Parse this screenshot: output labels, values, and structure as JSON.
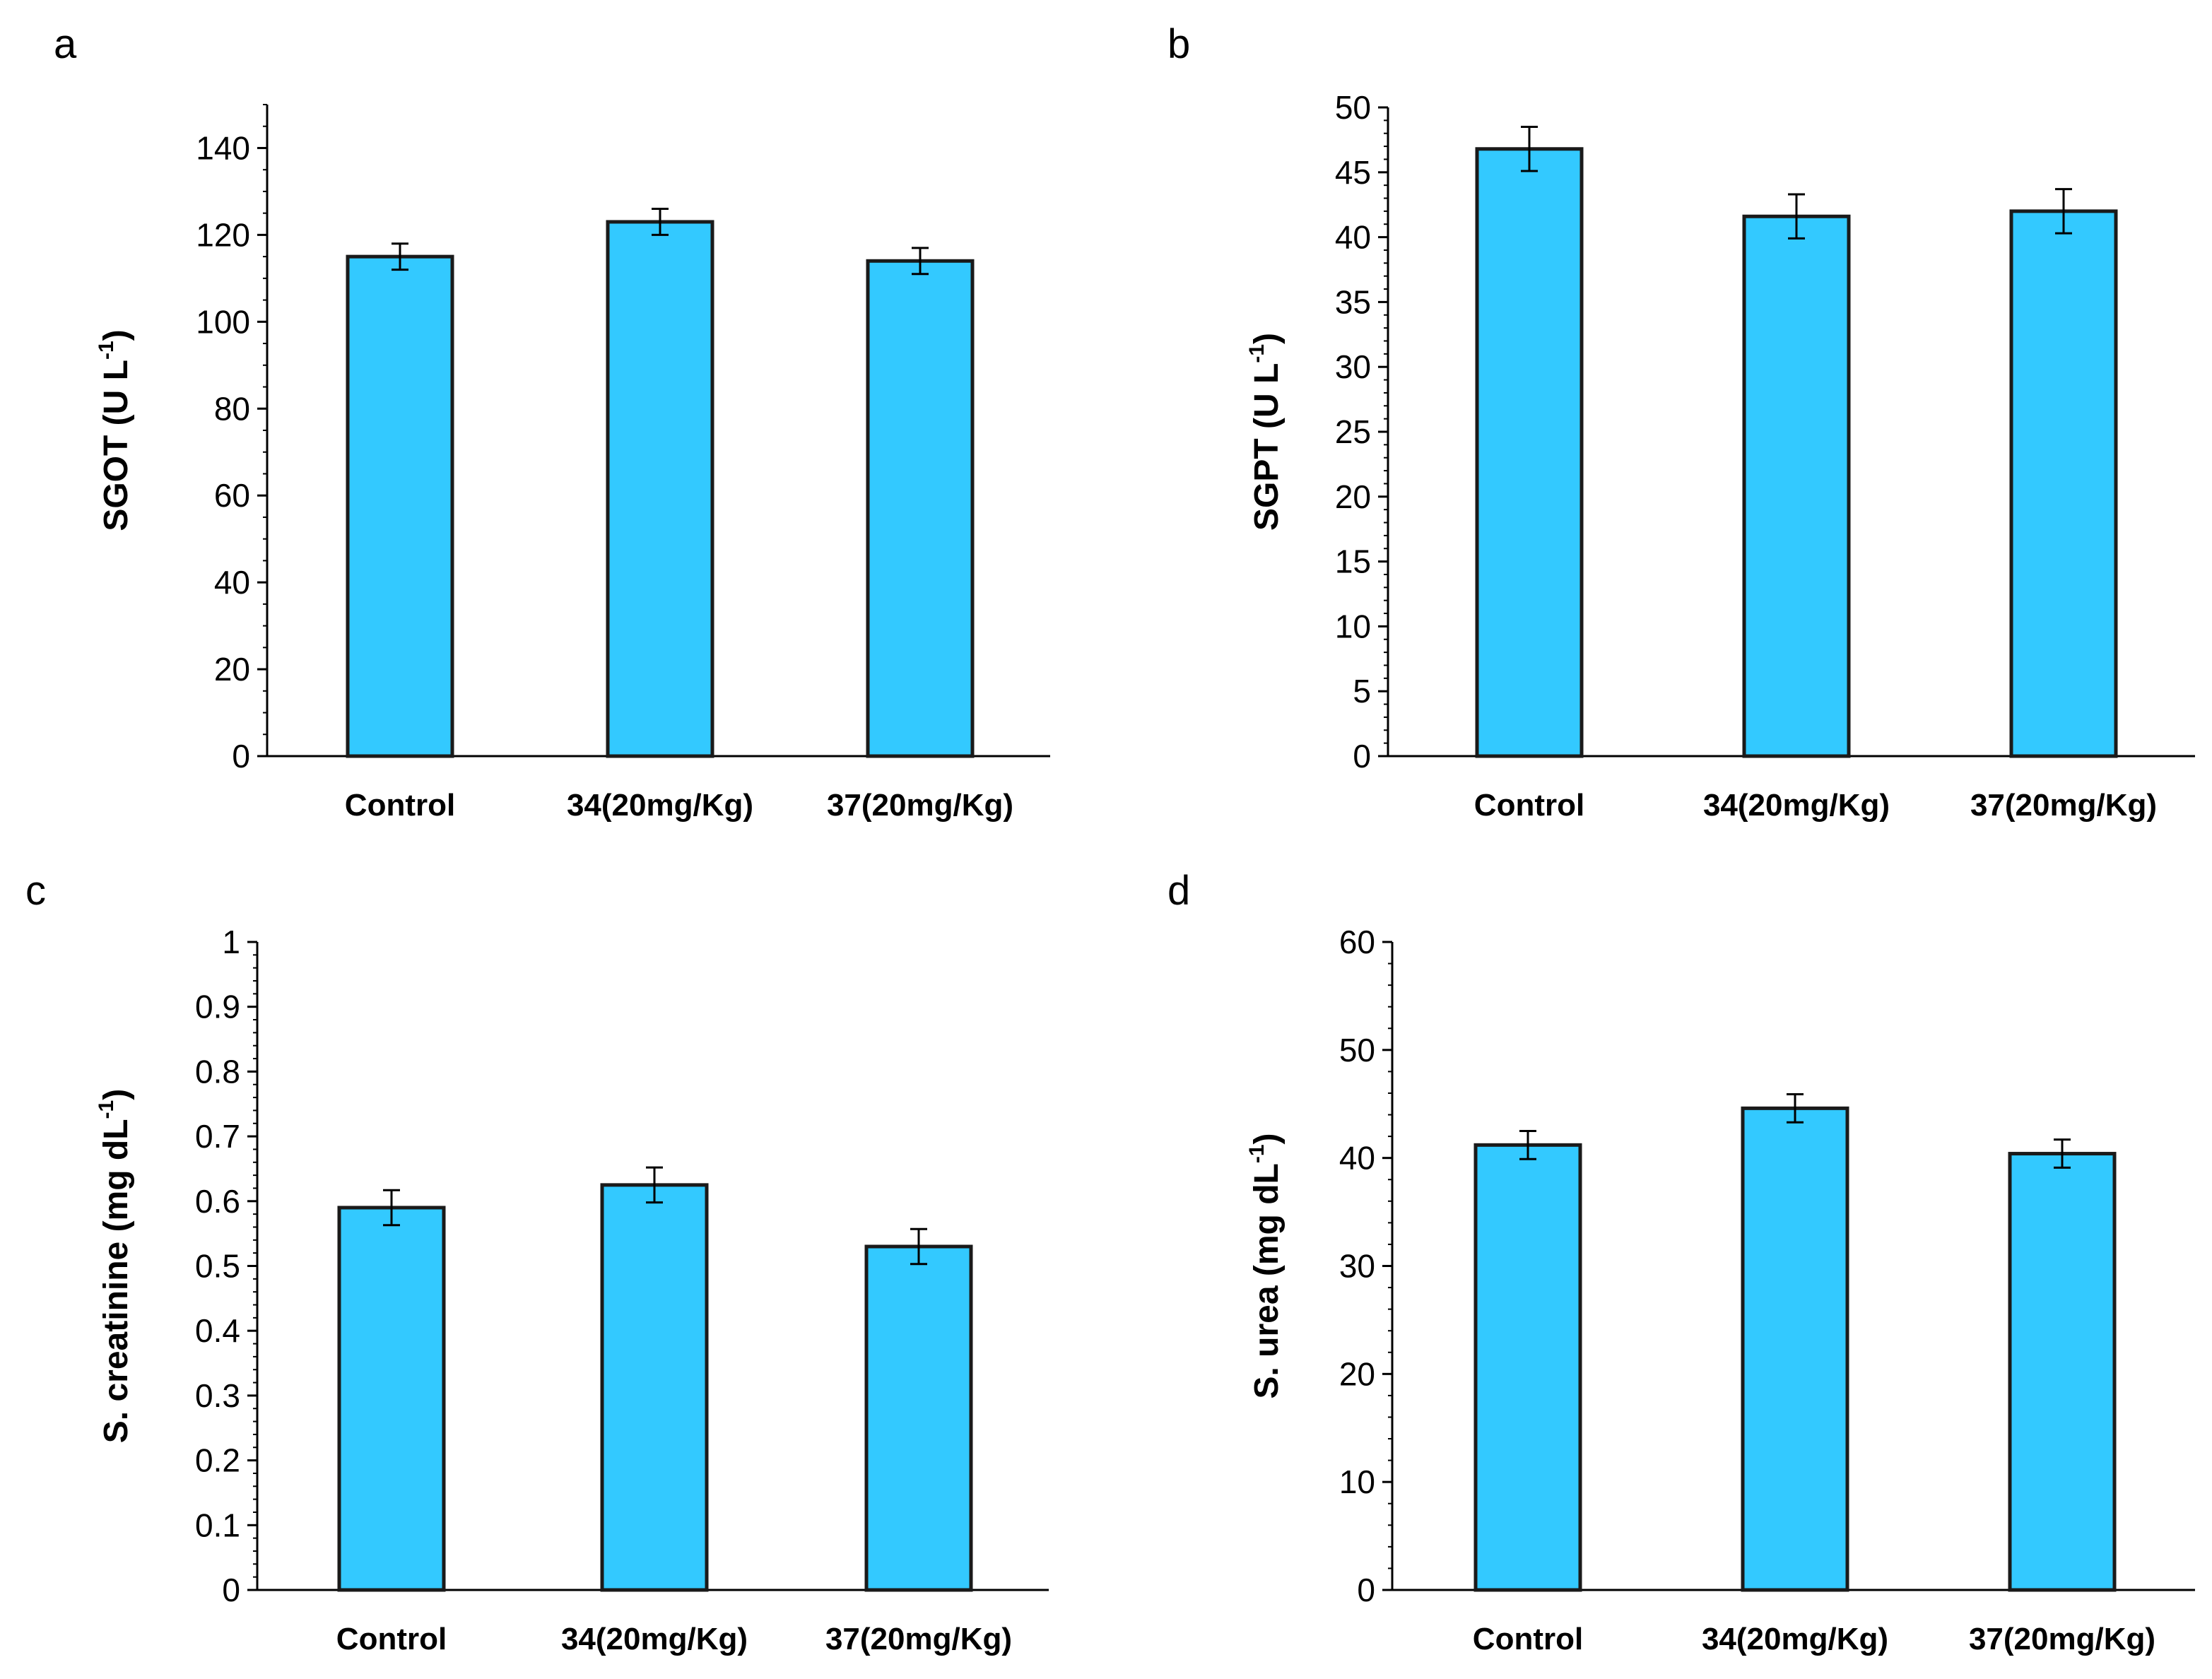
{
  "figure": {
    "bar_color": "#33C9FF",
    "bar_edge_color": "#1a1a1a"
  },
  "chart_data": [
    {
      "panel_label": "a",
      "type": "bar",
      "categories": [
        "Control",
        "34(20mg/Kg)",
        "37(20mg/Kg)"
      ],
      "values": [
        115,
        123,
        114
      ],
      "errors": [
        3,
        3,
        3
      ],
      "ylabel_main": "SGOT (U L",
      "ylabel_sup": "-1",
      "ylabel_end": ")",
      "ylim": [
        0,
        150
      ],
      "yticks": [
        0,
        20,
        40,
        60,
        80,
        100,
        120,
        140
      ],
      "minor_step": 5
    },
    {
      "panel_label": "b",
      "type": "bar",
      "categories": [
        "Control",
        "34(20mg/Kg)",
        "37(20mg/Kg)"
      ],
      "values": [
        46.8,
        41.6,
        42.0
      ],
      "errors": [
        1.7,
        1.7,
        1.7
      ],
      "ylabel_main": "SGPT (U L",
      "ylabel_sup": "-1",
      "ylabel_end": ")",
      "ylim": [
        0,
        50
      ],
      "yticks": [
        0,
        5,
        10,
        15,
        20,
        25,
        30,
        35,
        40,
        45,
        50
      ],
      "minor_step": 1
    },
    {
      "panel_label": "c",
      "type": "bar",
      "categories": [
        "Control",
        "34(20mg/Kg)",
        "37(20mg/Kg)"
      ],
      "values": [
        0.59,
        0.625,
        0.53
      ],
      "errors": [
        0.027,
        0.027,
        0.027
      ],
      "ylabel_main": "S. creatinine (mg dL",
      "ylabel_sup": "-1",
      "ylabel_end": ")",
      "ylim": [
        0,
        1
      ],
      "yticks": [
        0,
        0.1,
        0.2,
        0.3,
        0.4,
        0.5,
        0.6,
        0.7,
        0.8,
        0.9,
        1
      ],
      "minor_step": 0.02
    },
    {
      "panel_label": "d",
      "type": "bar",
      "categories": [
        "Control",
        "34(20mg/Kg)",
        "37(20mg/Kg)"
      ],
      "values": [
        41.2,
        44.6,
        40.4
      ],
      "errors": [
        1.3,
        1.3,
        1.3
      ],
      "ylabel_main": "S. urea (mg dL",
      "ylabel_sup": "-1",
      "ylabel_end": ")",
      "ylim": [
        0,
        60
      ],
      "yticks": [
        0,
        10,
        20,
        30,
        40,
        50,
        60
      ],
      "minor_step": 2
    }
  ]
}
